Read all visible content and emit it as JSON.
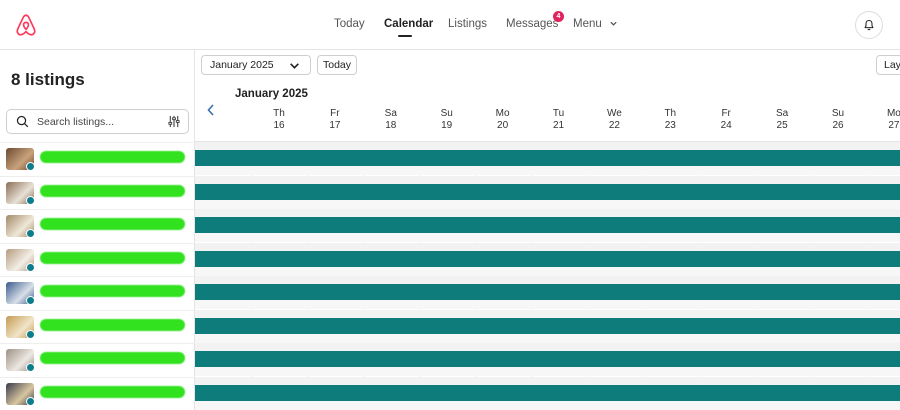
{
  "nav": {
    "today": "Today",
    "calendar": "Calendar",
    "listings": "Listings",
    "messages": "Messages",
    "messages_badge": "4",
    "menu": "Menu"
  },
  "sidebar": {
    "title": "8 listings",
    "search_placeholder": "Search listings...",
    "listings": [
      {
        "thumb_colors": [
          "#6b4a32",
          "#c9a27c"
        ]
      },
      {
        "thumb_colors": [
          "#8a6d55",
          "#e8e1d6"
        ]
      },
      {
        "thumb_colors": [
          "#a18866",
          "#efe7d8"
        ]
      },
      {
        "thumb_colors": [
          "#b59a7e",
          "#f3eee6"
        ]
      },
      {
        "thumb_colors": [
          "#3b5b8c",
          "#d8dfe8"
        ]
      },
      {
        "thumb_colors": [
          "#c49a52",
          "#f1e4c8"
        ]
      },
      {
        "thumb_colors": [
          "#9b8f83",
          "#ece8e2"
        ]
      },
      {
        "thumb_colors": [
          "#3a3a4a",
          "#d7c6a0"
        ]
      }
    ]
  },
  "toolbar": {
    "month_select": "January 2025",
    "today_button": "Today",
    "layout_button": "Lay"
  },
  "calendar": {
    "month_label": "January 2025",
    "days": [
      {
        "dow": "Th",
        "date": "16"
      },
      {
        "dow": "Fr",
        "date": "17"
      },
      {
        "dow": "Sa",
        "date": "18"
      },
      {
        "dow": "Su",
        "date": "19"
      },
      {
        "dow": "Mo",
        "date": "20"
      },
      {
        "dow": "Tu",
        "date": "21"
      },
      {
        "dow": "We",
        "date": "22"
      },
      {
        "dow": "Th",
        "date": "23"
      },
      {
        "dow": "Fr",
        "date": "24"
      },
      {
        "dow": "Sa",
        "date": "25"
      },
      {
        "dow": "Su",
        "date": "26"
      },
      {
        "dow": "Mo",
        "date": "27"
      }
    ],
    "bar_color": "#0f7c7c"
  },
  "colors": {
    "brand": "#ff385c",
    "badge": "#e0245e",
    "accent_teal": "#0f7c8c"
  }
}
